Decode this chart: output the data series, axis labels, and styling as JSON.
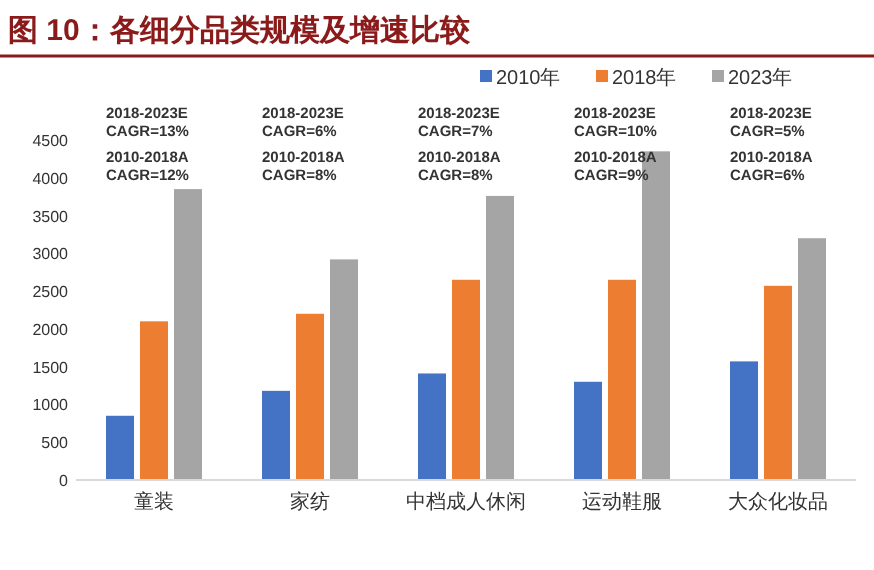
{
  "chart_data": {
    "type": "bar",
    "title": "图 10：各细分品类规模及增速比较",
    "categories": [
      "童装",
      "家纺",
      "中档成人休闲",
      "运动鞋服",
      "大众化妆品"
    ],
    "series": [
      {
        "name": "2010年",
        "color": "#4472c4",
        "values": [
          850,
          1180,
          1410,
          1300,
          1570
        ]
      },
      {
        "name": "2018年",
        "color": "#ed7d31",
        "values": [
          2100,
          2200,
          2650,
          2650,
          2570
        ]
      },
      {
        "name": "2023年",
        "color": "#a5a5a5",
        "values": [
          3850,
          2920,
          3760,
          4350,
          3200
        ]
      }
    ],
    "ylim": [
      0,
      4500
    ],
    "yticks": [
      0,
      500,
      1000,
      1500,
      2000,
      2500,
      3000,
      3500,
      4000,
      4500
    ],
    "grid": false,
    "legend": "top right",
    "annotations": [
      "2018-2023E\nCAGR=13%",
      "2010-2018A\nCAGR=12%",
      "2018-2023E\nCAGR=6%",
      "2010-2018A\nCAGR=8%",
      "2018-2023E\nCAGR=7%",
      "2010-2018A\nCAGR=8%",
      "2018-2023E\nCAGR=10%",
      "2010-2018A\nCAGR=9%",
      "2018-2023E\nCAGR=5%",
      "2010-2018A\nCAGR=6%"
    ]
  }
}
